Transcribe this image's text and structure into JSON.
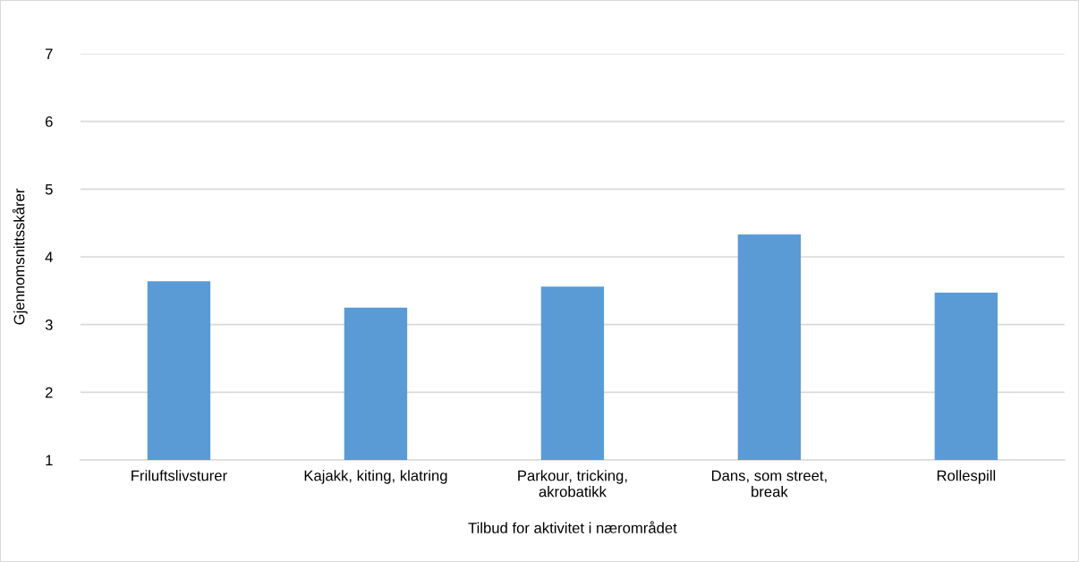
{
  "chart_data": {
    "type": "bar",
    "xlabel": "Tilbud for aktivitet i nærområdet",
    "ylabel": "Gjennomsnittsskårer",
    "categories": [
      "Friluftslivsturer",
      "Kajakk, kiting, klatring",
      "Parkour, tricking,\nakrobatikk",
      "Dans, som street,\nbreak",
      "Rollespill"
    ],
    "values": [
      3.64,
      3.25,
      3.56,
      4.33,
      3.47
    ],
    "color": "#5b9bd5",
    "ylim": [
      1,
      7
    ],
    "yticks": [
      1,
      2,
      3,
      4,
      5,
      6,
      7
    ],
    "grid": "y",
    "legend": false
  }
}
